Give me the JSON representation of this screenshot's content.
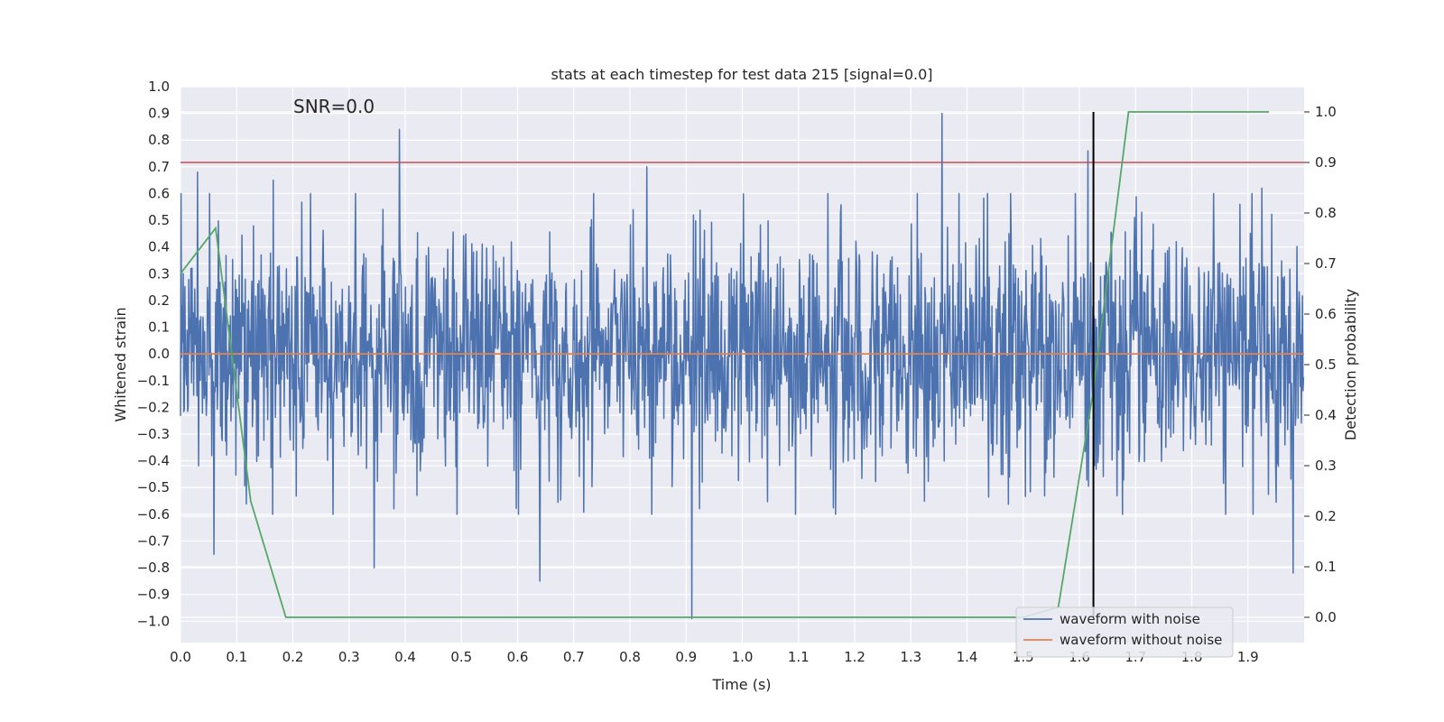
{
  "chart_data": {
    "type": "line",
    "title": "stats at each timestep for test data 215 [signal=0.0]",
    "xlabel": "Time (s)",
    "ylabel": "Whitened strain",
    "y2label": "Detection probability",
    "xlim": [
      0.0,
      2.0
    ],
    "ylim": [
      -1.08,
      1.0
    ],
    "y2lim": [
      -0.05,
      1.05
    ],
    "x_ticks": [
      "0.0",
      "0.1",
      "0.2",
      "0.3",
      "0.4",
      "0.5",
      "0.6",
      "0.7",
      "0.8",
      "0.9",
      "1.0",
      "1.1",
      "1.2",
      "1.3",
      "1.4",
      "1.5",
      "1.6",
      "1.7",
      "1.8",
      "1.9"
    ],
    "y_ticks": [
      "1.0",
      "0.9",
      "0.8",
      "0.7",
      "0.6",
      "0.5",
      "0.4",
      "0.3",
      "0.2",
      "0.1",
      "0.0",
      "−0.1",
      "−0.2",
      "−0.3",
      "−0.4",
      "−0.5",
      "−0.6",
      "−0.7",
      "−0.8",
      "−0.9",
      "−1.0"
    ],
    "y2_ticks": [
      "1.0",
      "0.9",
      "0.8",
      "0.7",
      "0.6",
      "0.5",
      "0.4",
      "0.3",
      "0.2",
      "0.1",
      "0.0"
    ],
    "grid": true,
    "annotation": "SNR=0.0",
    "legend": {
      "placement": "lower-right",
      "entries": [
        "waveform with noise",
        "waveform without noise"
      ]
    },
    "colors": {
      "noise": "#4c72b0",
      "clean": "#dd8452",
      "probability": "#55a868",
      "threshold": "#c44e52",
      "marker": "#000000",
      "plot_bg": "#eaeaf2"
    },
    "series": [
      {
        "name": "waveform with noise",
        "axis": "left",
        "style": "noise",
        "sample_rate": 1024,
        "amplitude_std": 0.22,
        "peaks": [
          [
            0.03,
            0.68
          ],
          [
            0.06,
            -0.75
          ],
          [
            0.165,
            0.65
          ],
          [
            0.345,
            -0.8
          ],
          [
            0.39,
            0.84
          ],
          [
            0.64,
            -0.85
          ],
          [
            0.83,
            0.7
          ],
          [
            0.91,
            -0.99
          ],
          [
            1.355,
            0.9
          ],
          [
            1.615,
            0.76
          ],
          [
            1.925,
            0.62
          ],
          [
            1.98,
            -0.82
          ]
        ]
      },
      {
        "name": "waveform without noise",
        "axis": "left",
        "x": [
          0.0,
          2.0
        ],
        "y": [
          0.0,
          0.0
        ]
      },
      {
        "axis": "right",
        "x": [
          0.0,
          0.0625,
          0.125,
          0.1875,
          0.25,
          0.3125,
          0.375,
          0.4375,
          0.5,
          0.5625,
          0.625,
          0.6875,
          0.75,
          0.8125,
          0.875,
          0.9375,
          1.0,
          1.0625,
          1.125,
          1.1875,
          1.25,
          1.3125,
          1.375,
          1.4375,
          1.5,
          1.5625,
          1.625,
          1.6875,
          1.75,
          1.8125,
          1.875,
          1.9375
        ],
        "y": [
          0.68,
          0.77,
          0.23,
          0.0,
          0.0,
          0.0,
          0.0,
          0.0,
          0.0,
          0.0,
          0.0,
          0.0,
          0.0,
          0.0,
          0.0,
          0.0,
          0.0,
          0.0,
          0.0,
          0.0,
          0.0,
          0.0,
          0.0,
          0.0,
          0.0,
          0.02,
          0.45,
          1.0,
          1.0,
          1.0,
          1.0,
          1.0
        ]
      }
    ],
    "threshold_y2": 0.9,
    "marker_x": 1.625,
    "marker_y2_range": [
      0.0,
      1.0
    ]
  }
}
